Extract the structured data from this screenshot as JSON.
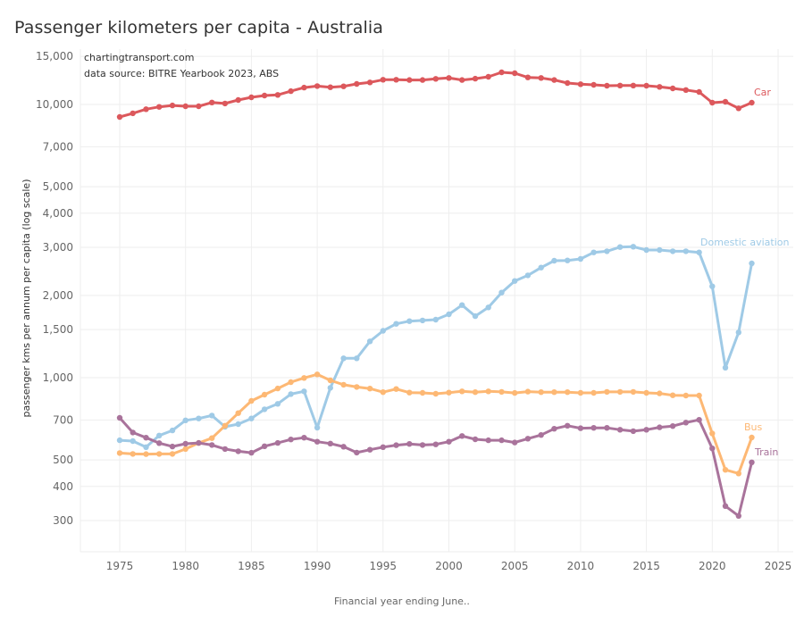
{
  "chart_data": {
    "type": "line",
    "title": "Passenger kilometers per capita - Australia",
    "xlabel": "Financial year ending June..",
    "ylabel": "passenger kms per annum per capita (log scale)",
    "yscale": "log",
    "ylim": [
      230,
      16000
    ],
    "xlim": [
      1971.9,
      2026.1
    ],
    "grid": true,
    "annotations": [
      "chartingtransport.com",
      "data source: BITRE Yearbook 2023, ABS"
    ],
    "y_ticks": [
      {
        "value": 15000,
        "label": "15,000"
      },
      {
        "value": 10000,
        "label": "10,000"
      },
      {
        "value": 7000,
        "label": "7,000"
      },
      {
        "value": 5000,
        "label": "5,000"
      },
      {
        "value": 4000,
        "label": "4,000"
      },
      {
        "value": 3000,
        "label": "3,000"
      },
      {
        "value": 2000,
        "label": "2,000"
      },
      {
        "value": 1500,
        "label": "1,500"
      },
      {
        "value": 1000,
        "label": "1,000"
      },
      {
        "value": 700,
        "label": "700"
      },
      {
        "value": 500,
        "label": "500"
      },
      {
        "value": 400,
        "label": "400"
      },
      {
        "value": 300,
        "label": "300"
      }
    ],
    "x_ticks": [
      1975,
      1980,
      1985,
      1990,
      1995,
      2000,
      2005,
      2010,
      2015,
      2020,
      2025
    ],
    "x": [
      1975,
      1976,
      1977,
      1978,
      1979,
      1980,
      1981,
      1982,
      1983,
      1984,
      1985,
      1986,
      1987,
      1988,
      1989,
      1990,
      1991,
      1992,
      1993,
      1994,
      1995,
      1996,
      1997,
      1998,
      1999,
      2000,
      2001,
      2002,
      2003,
      2004,
      2005,
      2006,
      2007,
      2008,
      2009,
      2010,
      2011,
      2012,
      2013,
      2014,
      2015,
      2016,
      2017,
      2018,
      2019,
      2020,
      2021,
      2022,
      2023
    ],
    "series": [
      {
        "name": "Car",
        "color": "#dc585c",
        "values": [
          9000,
          9280,
          9610,
          9800,
          9920,
          9850,
          9850,
          10170,
          10080,
          10380,
          10620,
          10780,
          10840,
          11190,
          11530,
          11680,
          11560,
          11650,
          11890,
          12040,
          12320,
          12320,
          12290,
          12290,
          12410,
          12500,
          12290,
          12430,
          12630,
          13110,
          13010,
          12560,
          12500,
          12290,
          11980,
          11860,
          11800,
          11710,
          11730,
          11730,
          11710,
          11600,
          11450,
          11300,
          11110,
          10150,
          10230,
          9680,
          10150
        ]
      },
      {
        "name": "Domestic aviation",
        "color": "#9fcae6",
        "values": [
          590,
          586,
          557,
          614,
          641,
          698,
          709,
          727,
          661,
          676,
          709,
          766,
          802,
          871,
          891,
          656,
          918,
          1177,
          1177,
          1358,
          1484,
          1574,
          1610,
          1620,
          1631,
          1706,
          1843,
          1680,
          1808,
          2048,
          2259,
          2369,
          2529,
          2680,
          2685,
          2720,
          2873,
          2903,
          3006,
          3015,
          2933,
          2933,
          2903,
          2903,
          2873,
          2159,
          1088,
          1464,
          2620
        ]
      },
      {
        "name": "Bus",
        "color": "#fdb874",
        "values": [
          530,
          526,
          525,
          526,
          526,
          548,
          577,
          601,
          667,
          742,
          822,
          867,
          913,
          963,
          998,
          1028,
          978,
          942,
          925,
          912,
          885,
          909,
          882,
          880,
          873,
          882,
          891,
          885,
          891,
          887,
          879,
          889,
          885,
          885,
          885,
          880,
          880,
          887,
          887,
          887,
          880,
          876,
          862,
          860,
          860,
          625,
          460,
          446,
          604
        ]
      },
      {
        "name": "Train",
        "color": "#a9739b",
        "values": [
          713,
          630,
          603,
          576,
          560,
          573,
          577,
          567,
          548,
          538,
          531,
          561,
          577,
          594,
          603,
          583,
          574,
          559,
          532,
          545,
          557,
          566,
          572,
          567,
          570,
          583,
          612,
          595,
          590,
          590,
          579,
          598,
          617,
          650,
          667,
          653,
          655,
          655,
          645,
          637,
          645,
          658,
          665,
          685,
          701,
          551,
          339,
          312,
          490
        ]
      }
    ]
  }
}
